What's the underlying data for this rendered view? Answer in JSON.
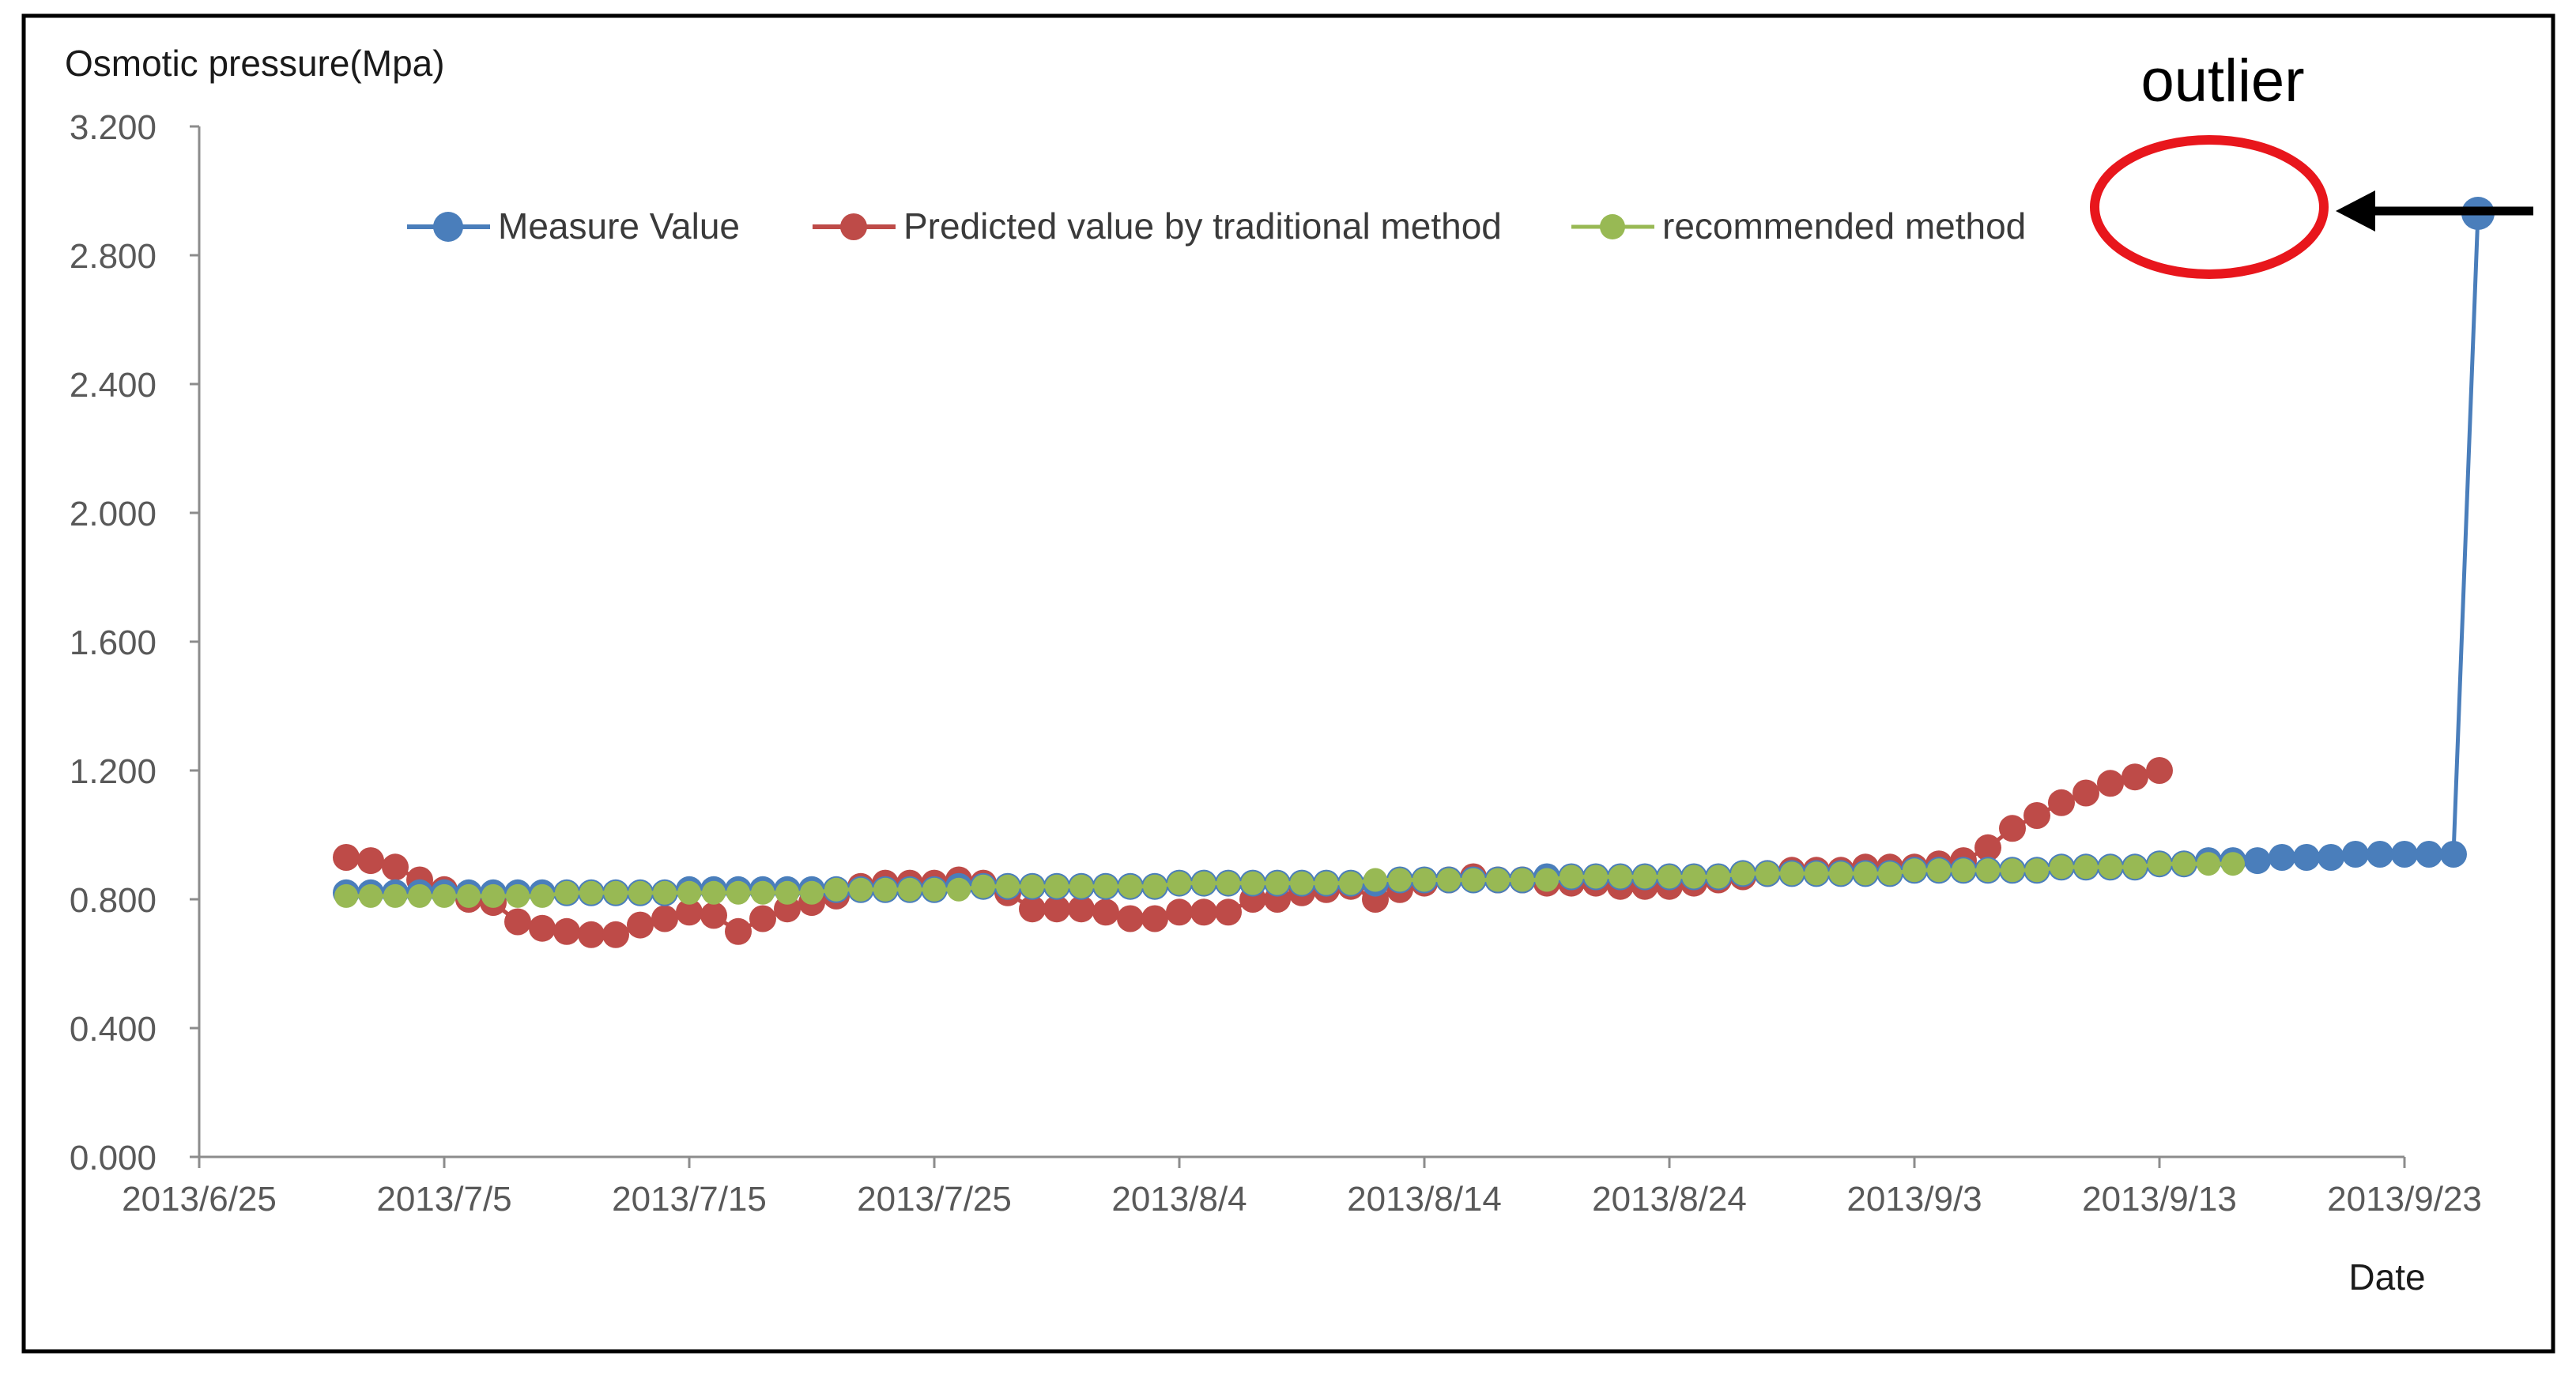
{
  "chart_data": {
    "type": "line",
    "ylabel": "Osmotic pressure(Mpa)",
    "xlabel": "Date",
    "ylim": [
      0,
      3.2
    ],
    "yticks": [
      "0.000",
      "0.400",
      "0.800",
      "1.200",
      "1.600",
      "2.000",
      "2.400",
      "2.800",
      "3.200"
    ],
    "xticks": [
      "2013/6/25",
      "2013/7/5",
      "2013/7/15",
      "2013/7/25",
      "2013/8/4",
      "2013/8/14",
      "2013/8/24",
      "2013/9/3",
      "2013/9/13",
      "2013/9/23"
    ],
    "x_start": "2013/7/1",
    "x_step_days": 1,
    "legend_position": "top",
    "annotation": "outlier",
    "colors": {
      "measure": "#4a7ebb",
      "predicted": "#be4b48",
      "recommended": "#98b954",
      "annotation": "#e8161c",
      "frame": "#000000",
      "axis": "#8c8c8c"
    },
    "series": [
      {
        "name": "Measure Value",
        "color": "#4a7ebb",
        "values": [
          0.82,
          0.82,
          0.82,
          0.82,
          0.82,
          0.82,
          0.82,
          0.82,
          0.82,
          0.82,
          0.82,
          0.82,
          0.82,
          0.82,
          0.83,
          0.83,
          0.83,
          0.83,
          0.83,
          0.83,
          0.83,
          0.83,
          0.83,
          0.83,
          0.83,
          0.84,
          0.84,
          0.84,
          0.84,
          0.84,
          0.84,
          0.84,
          0.84,
          0.84,
          0.85,
          0.85,
          0.85,
          0.85,
          0.85,
          0.85,
          0.85,
          0.85,
          0.85,
          0.86,
          0.86,
          0.86,
          0.86,
          0.86,
          0.86,
          0.87,
          0.87,
          0.87,
          0.87,
          0.87,
          0.87,
          0.87,
          0.87,
          0.88,
          0.88,
          0.88,
          0.88,
          0.88,
          0.88,
          0.88,
          0.89,
          0.89,
          0.89,
          0.89,
          0.89,
          0.89,
          0.9,
          0.9,
          0.9,
          0.9,
          0.91,
          0.91,
          0.92,
          0.92,
          0.92,
          0.93,
          0.93,
          0.93,
          0.94,
          0.94,
          0.94,
          0.94,
          0.94,
          2.93
        ]
      },
      {
        "name": "Predicted value by traditional method",
        "color": "#be4b48",
        "values": [
          0.93,
          0.92,
          0.9,
          0.86,
          0.83,
          0.8,
          0.79,
          0.73,
          0.71,
          0.7,
          0.69,
          0.69,
          0.72,
          0.74,
          0.76,
          0.75,
          0.7,
          0.74,
          0.77,
          0.79,
          0.81,
          0.84,
          0.85,
          0.85,
          0.85,
          0.86,
          0.85,
          0.82,
          0.77,
          0.77,
          0.77,
          0.76,
          0.74,
          0.74,
          0.76,
          0.76,
          0.76,
          0.8,
          0.8,
          0.82,
          0.83,
          0.84,
          0.8,
          0.83,
          0.85,
          0.86,
          0.87,
          0.86,
          0.86,
          0.85,
          0.85,
          0.85,
          0.84,
          0.84,
          0.84,
          0.85,
          0.86,
          0.87,
          0.88,
          0.89,
          0.89,
          0.89,
          0.9,
          0.9,
          0.9,
          0.91,
          0.92,
          0.96,
          1.02,
          1.06,
          1.1,
          1.13,
          1.16,
          1.18,
          1.2
        ]
      },
      {
        "name": "recommended method",
        "color": "#98b954",
        "values": [
          0.81,
          0.81,
          0.81,
          0.81,
          0.81,
          0.81,
          0.81,
          0.81,
          0.81,
          0.82,
          0.82,
          0.82,
          0.82,
          0.82,
          0.82,
          0.82,
          0.82,
          0.82,
          0.82,
          0.82,
          0.83,
          0.83,
          0.83,
          0.83,
          0.83,
          0.83,
          0.84,
          0.84,
          0.84,
          0.84,
          0.84,
          0.84,
          0.84,
          0.84,
          0.85,
          0.85,
          0.85,
          0.85,
          0.85,
          0.85,
          0.85,
          0.85,
          0.86,
          0.86,
          0.86,
          0.86,
          0.86,
          0.86,
          0.86,
          0.86,
          0.87,
          0.87,
          0.87,
          0.87,
          0.87,
          0.87,
          0.87,
          0.88,
          0.88,
          0.88,
          0.88,
          0.88,
          0.88,
          0.88,
          0.89,
          0.89,
          0.89,
          0.89,
          0.89,
          0.89,
          0.9,
          0.9,
          0.9,
          0.9,
          0.91,
          0.91,
          0.91,
          0.91
        ]
      }
    ]
  }
}
